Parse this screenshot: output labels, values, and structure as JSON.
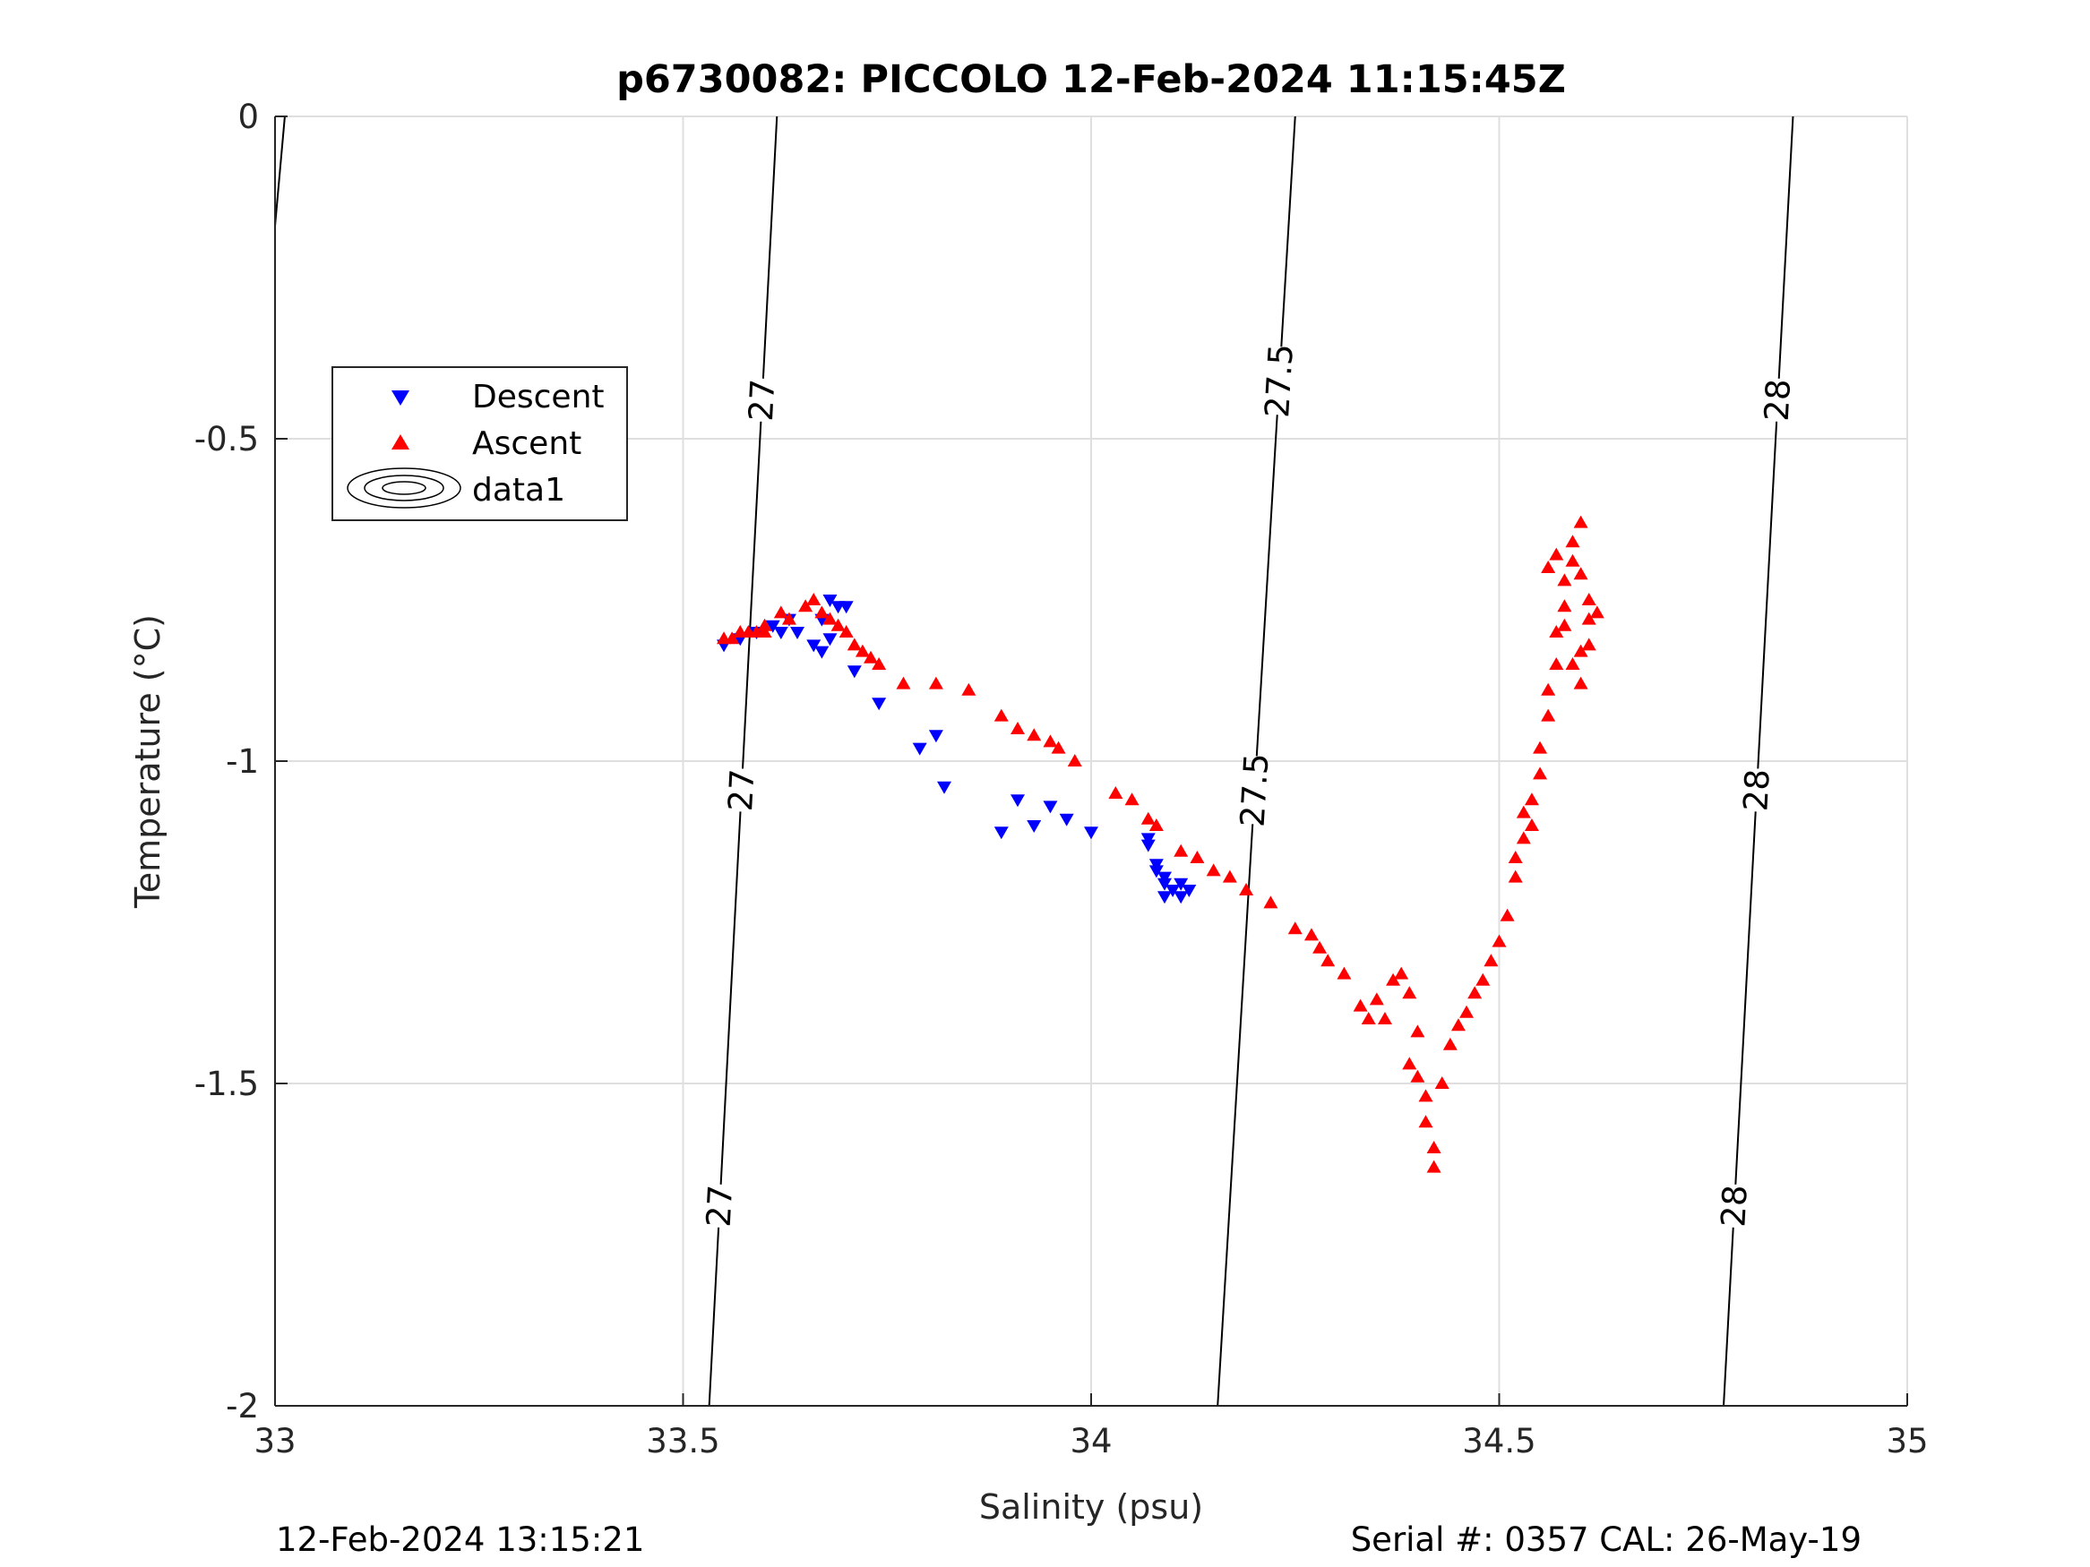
{
  "chart_data": {
    "type": "scatter",
    "title": "p6730082: PICCOLO 12-Feb-2024 11:15:45Z",
    "xlabel": "Salinity (psu)",
    "ylabel": "Temperature (°C)",
    "xlim": [
      33,
      35
    ],
    "ylim": [
      -2,
      0
    ],
    "xticks": [
      33,
      33.5,
      34,
      34.5,
      35
    ],
    "xtick_labels": [
      "33",
      "33.5",
      "34",
      "34.5",
      "35"
    ],
    "yticks": [
      0,
      -0.5,
      -1,
      -1.5,
      -2
    ],
    "ytick_labels": [
      "0",
      "-0.5",
      "-1",
      "-1.5",
      "-2"
    ],
    "grid": true,
    "legend_position": "upper-left",
    "legend": [
      {
        "name": "Descent",
        "marker": "triangle-down",
        "color": "#0000ff"
      },
      {
        "name": "Ascent",
        "marker": "triangle-up",
        "color": "#ff0000"
      },
      {
        "name": "data1",
        "marker": "contour",
        "color": "#000000"
      }
    ],
    "series": [
      {
        "name": "Descent",
        "color": "#0000ff",
        "marker": "triangle-down",
        "points": [
          [
            33.55,
            -0.82
          ],
          [
            33.57,
            -0.81
          ],
          [
            33.59,
            -0.8
          ],
          [
            33.61,
            -0.79
          ],
          [
            33.62,
            -0.8
          ],
          [
            33.63,
            -0.78
          ],
          [
            33.64,
            -0.8
          ],
          [
            33.66,
            -0.82
          ],
          [
            33.67,
            -0.83
          ],
          [
            33.67,
            -0.78
          ],
          [
            33.68,
            -0.75
          ],
          [
            33.69,
            -0.76
          ],
          [
            33.7,
            -0.76
          ],
          [
            33.68,
            -0.81
          ],
          [
            33.71,
            -0.86
          ],
          [
            33.74,
            -0.91
          ],
          [
            33.79,
            -0.98
          ],
          [
            33.81,
            -0.96
          ],
          [
            33.82,
            -1.04
          ],
          [
            33.89,
            -1.11
          ],
          [
            33.91,
            -1.06
          ],
          [
            33.93,
            -1.1
          ],
          [
            33.95,
            -1.07
          ],
          [
            33.97,
            -1.09
          ],
          [
            34.0,
            -1.11
          ],
          [
            34.07,
            -1.12
          ],
          [
            34.07,
            -1.13
          ],
          [
            34.08,
            -1.16
          ],
          [
            34.08,
            -1.17
          ],
          [
            34.09,
            -1.18
          ],
          [
            34.09,
            -1.19
          ],
          [
            34.1,
            -1.2
          ],
          [
            34.09,
            -1.21
          ],
          [
            34.11,
            -1.19
          ],
          [
            34.11,
            -1.21
          ],
          [
            34.12,
            -1.2
          ]
        ]
      },
      {
        "name": "Ascent",
        "color": "#ff0000",
        "marker": "triangle-up",
        "points": [
          [
            33.55,
            -0.81
          ],
          [
            33.56,
            -0.81
          ],
          [
            33.57,
            -0.8
          ],
          [
            33.58,
            -0.8
          ],
          [
            33.59,
            -0.8
          ],
          [
            33.6,
            -0.79
          ],
          [
            33.6,
            -0.8
          ],
          [
            33.62,
            -0.77
          ],
          [
            33.63,
            -0.78
          ],
          [
            33.65,
            -0.76
          ],
          [
            33.66,
            -0.75
          ],
          [
            33.67,
            -0.77
          ],
          [
            33.68,
            -0.78
          ],
          [
            33.69,
            -0.79
          ],
          [
            33.7,
            -0.8
          ],
          [
            33.71,
            -0.82
          ],
          [
            33.72,
            -0.83
          ],
          [
            33.73,
            -0.84
          ],
          [
            33.74,
            -0.85
          ],
          [
            33.77,
            -0.88
          ],
          [
            33.81,
            -0.88
          ],
          [
            33.85,
            -0.89
          ],
          [
            33.89,
            -0.93
          ],
          [
            33.91,
            -0.95
          ],
          [
            33.93,
            -0.96
          ],
          [
            33.95,
            -0.97
          ],
          [
            33.96,
            -0.98
          ],
          [
            33.98,
            -1.0
          ],
          [
            34.03,
            -1.05
          ],
          [
            34.05,
            -1.06
          ],
          [
            34.07,
            -1.09
          ],
          [
            34.08,
            -1.1
          ],
          [
            34.11,
            -1.14
          ],
          [
            34.13,
            -1.15
          ],
          [
            34.15,
            -1.17
          ],
          [
            34.17,
            -1.18
          ],
          [
            34.19,
            -1.2
          ],
          [
            34.22,
            -1.22
          ],
          [
            34.25,
            -1.26
          ],
          [
            34.27,
            -1.27
          ],
          [
            34.28,
            -1.29
          ],
          [
            34.29,
            -1.31
          ],
          [
            34.31,
            -1.33
          ],
          [
            34.33,
            -1.38
          ],
          [
            34.34,
            -1.4
          ],
          [
            34.35,
            -1.37
          ],
          [
            34.36,
            -1.4
          ],
          [
            34.37,
            -1.34
          ],
          [
            34.38,
            -1.33
          ],
          [
            34.39,
            -1.36
          ],
          [
            34.4,
            -1.42
          ],
          [
            34.39,
            -1.47
          ],
          [
            34.4,
            -1.49
          ],
          [
            34.41,
            -1.52
          ],
          [
            34.41,
            -1.56
          ],
          [
            34.42,
            -1.6
          ],
          [
            34.42,
            -1.63
          ],
          [
            34.43,
            -1.5
          ],
          [
            34.44,
            -1.44
          ],
          [
            34.45,
            -1.41
          ],
          [
            34.46,
            -1.39
          ],
          [
            34.47,
            -1.36
          ],
          [
            34.48,
            -1.34
          ],
          [
            34.49,
            -1.31
          ],
          [
            34.5,
            -1.28
          ],
          [
            34.51,
            -1.24
          ],
          [
            34.52,
            -1.18
          ],
          [
            34.52,
            -1.15
          ],
          [
            34.53,
            -1.12
          ],
          [
            34.53,
            -1.08
          ],
          [
            34.54,
            -1.06
          ],
          [
            34.54,
            -1.1
          ],
          [
            34.55,
            -1.02
          ],
          [
            34.55,
            -0.98
          ],
          [
            34.56,
            -0.93
          ],
          [
            34.56,
            -0.89
          ],
          [
            34.57,
            -0.85
          ],
          [
            34.57,
            -0.8
          ],
          [
            34.58,
            -0.76
          ],
          [
            34.58,
            -0.72
          ],
          [
            34.59,
            -0.69
          ],
          [
            34.59,
            -0.66
          ],
          [
            34.6,
            -0.63
          ],
          [
            34.6,
            -0.71
          ],
          [
            34.61,
            -0.78
          ],
          [
            34.61,
            -0.82
          ],
          [
            34.6,
            -0.88
          ],
          [
            34.59,
            -0.85
          ],
          [
            34.58,
            -0.79
          ],
          [
            34.57,
            -0.68
          ],
          [
            34.56,
            -0.7
          ],
          [
            34.62,
            -0.77
          ],
          [
            34.61,
            -0.75
          ],
          [
            34.6,
            -0.83
          ]
        ]
      }
    ],
    "contours": [
      {
        "level": "27",
        "line": [
          [
            33.532,
            -2.0
          ],
          [
            33.615,
            0.0
          ]
        ],
        "labels": [
          [
            33.545,
            -1.69
          ],
          [
            33.58,
            -1.045
          ],
          [
            33.62,
            -0.44
          ]
        ]
      },
      {
        "level": "27.5",
        "line": [
          [
            34.155,
            -2.0
          ],
          [
            34.25,
            0.0
          ]
        ],
        "labels": [
          [
            34.195,
            -1.045
          ],
          [
            34.24,
            -0.41
          ]
        ]
      },
      {
        "level": "28",
        "line": [
          [
            34.775,
            -2.0
          ],
          [
            34.86,
            0.0
          ]
        ],
        "labels": [
          [
            34.78,
            -1.69
          ],
          [
            34.81,
            -1.045
          ],
          [
            34.86,
            -0.44
          ]
        ]
      },
      {
        "level": "",
        "line": [
          [
            33.0,
            -0.17
          ],
          [
            33.012,
            0.0
          ]
        ],
        "labels": []
      }
    ]
  },
  "footer": {
    "left": "12-Feb-2024 13:15:21",
    "right": "Serial #: 0357  CAL: 26-May-19"
  }
}
